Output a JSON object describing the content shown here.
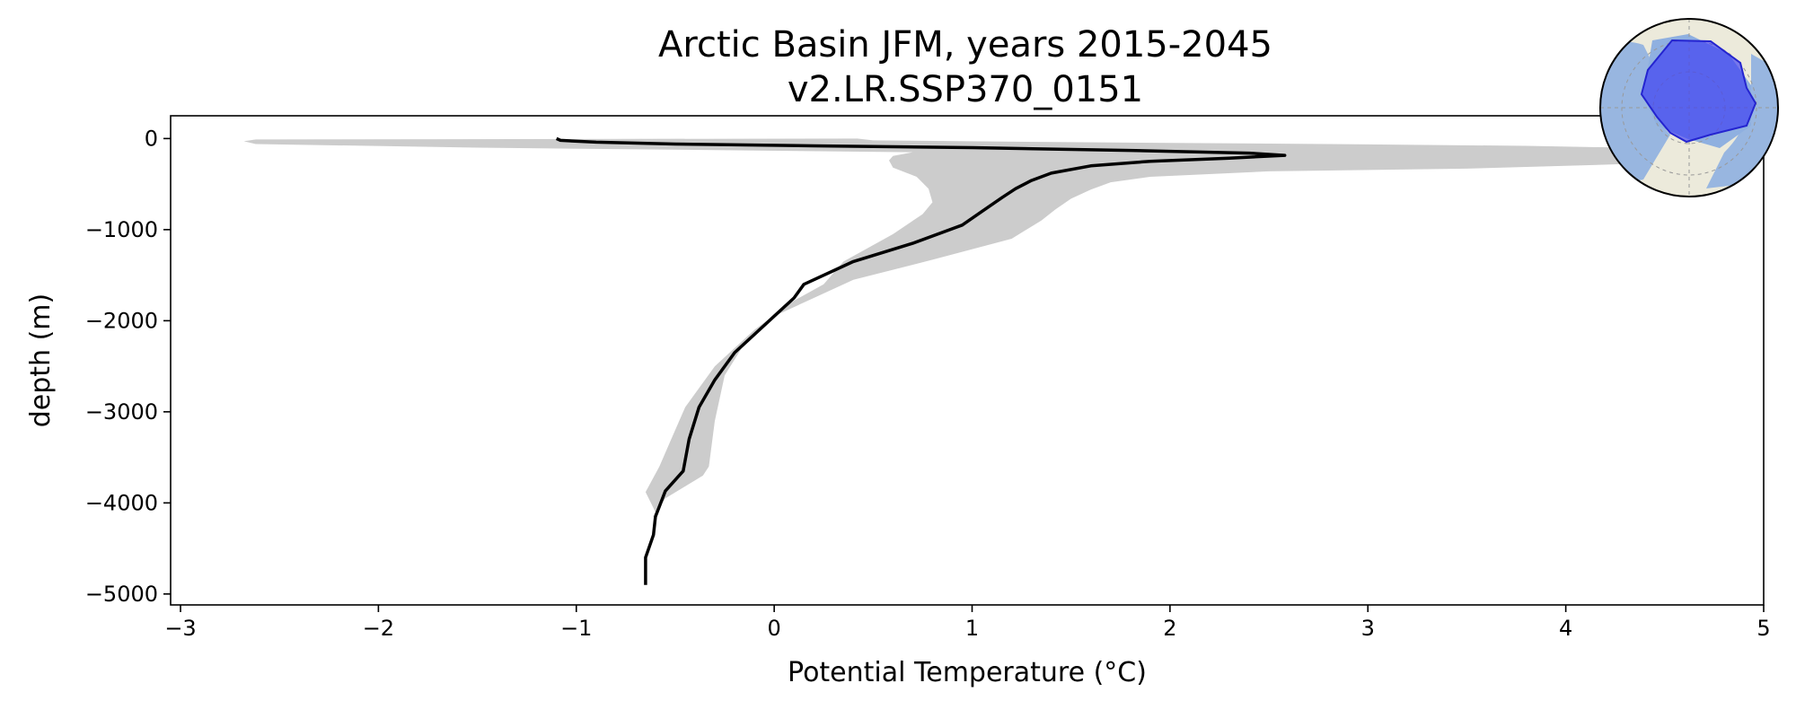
{
  "chart_data": {
    "type": "line",
    "title_line1": "Arctic Basin JFM, years 2015-2045",
    "title_line2": "v2.LR.SSP370_0151",
    "xlabel": "Potential Temperature (°C)",
    "ylabel": "depth (m)",
    "xlim": [
      -3.05,
      5.0
    ],
    "ylim": [
      -5120,
      250
    ],
    "xticks": [
      -3,
      -2,
      -1,
      0,
      1,
      2,
      3,
      4,
      5
    ],
    "xtick_labels": [
      "−3",
      "−2",
      "−1",
      "0",
      "1",
      "2",
      "3",
      "4",
      "5"
    ],
    "yticks": [
      0,
      -1000,
      -2000,
      -3000,
      -4000,
      -5000
    ],
    "ytick_labels": [
      "0",
      "−1000",
      "−2000",
      "−3000",
      "−4000",
      "−5000"
    ],
    "grid": false,
    "legend": "none",
    "colors": {
      "mean_line": "#000000",
      "range_band": "#cccccc",
      "map_ocean": "#8fb0e0",
      "map_land": "#eceadb",
      "map_region": "#3b3bf5"
    },
    "series": [
      {
        "role": "mean",
        "points": [
          [
            -1.1,
            0
          ],
          [
            -1.08,
            -20
          ],
          [
            -0.9,
            -40
          ],
          [
            -0.5,
            -60
          ],
          [
            0.2,
            -80
          ],
          [
            1.0,
            -100
          ],
          [
            1.8,
            -130
          ],
          [
            2.4,
            -160
          ],
          [
            2.58,
            -185
          ],
          [
            2.3,
            -215
          ],
          [
            1.9,
            -250
          ],
          [
            1.6,
            -300
          ],
          [
            1.4,
            -380
          ],
          [
            1.3,
            -460
          ],
          [
            1.22,
            -550
          ],
          [
            1.15,
            -650
          ],
          [
            1.05,
            -800
          ],
          [
            0.95,
            -950
          ],
          [
            0.7,
            -1150
          ],
          [
            0.4,
            -1350
          ],
          [
            0.15,
            -1600
          ],
          [
            0.1,
            -1750
          ],
          [
            0.0,
            -1950
          ],
          [
            -0.1,
            -2150
          ],
          [
            -0.2,
            -2350
          ],
          [
            -0.3,
            -2650
          ],
          [
            -0.38,
            -2950
          ],
          [
            -0.43,
            -3300
          ],
          [
            -0.46,
            -3650
          ],
          [
            -0.55,
            -3870
          ],
          [
            -0.6,
            -4150
          ],
          [
            -0.61,
            -4350
          ],
          [
            -0.65,
            -4600
          ],
          [
            -0.65,
            -4900
          ]
        ]
      }
    ],
    "range_band": {
      "max": [
        [
          0.42,
          0
        ],
        [
          0.5,
          -20
        ],
        [
          1.5,
          -40
        ],
        [
          2.8,
          -60
        ],
        [
          3.8,
          -80
        ],
        [
          4.3,
          -100
        ],
        [
          4.6,
          -140
        ],
        [
          4.7,
          -190
        ],
        [
          4.3,
          -280
        ],
        [
          3.5,
          -330
        ],
        [
          2.5,
          -360
        ],
        [
          1.9,
          -420
        ],
        [
          1.7,
          -480
        ],
        [
          1.6,
          -560
        ],
        [
          1.5,
          -660
        ],
        [
          1.42,
          -780
        ],
        [
          1.35,
          -900
        ],
        [
          1.2,
          -1100
        ],
        [
          0.8,
          -1330
        ],
        [
          0.4,
          -1550
        ],
        [
          0.2,
          -1750
        ],
        [
          0.0,
          -1950
        ],
        [
          -0.15,
          -2250
        ],
        [
          -0.25,
          -2600
        ],
        [
          -0.3,
          -3100
        ],
        [
          -0.33,
          -3600
        ],
        [
          -0.36,
          -3700
        ],
        [
          -0.55,
          -3950
        ],
        [
          -0.62,
          -4180
        ]
      ],
      "min": [
        [
          -2.62,
          -10
        ],
        [
          -2.68,
          -30
        ],
        [
          -2.62,
          -60
        ],
        [
          -1.5,
          -100
        ],
        [
          0.7,
          -150
        ],
        [
          0.6,
          -190
        ],
        [
          0.58,
          -240
        ],
        [
          0.6,
          -320
        ],
        [
          0.72,
          -420
        ],
        [
          0.78,
          -550
        ],
        [
          0.8,
          -700
        ],
        [
          0.75,
          -830
        ],
        [
          0.6,
          -1050
        ],
        [
          0.35,
          -1350
        ],
        [
          0.25,
          -1600
        ],
        [
          0.1,
          -1780
        ],
        [
          -0.1,
          -2100
        ],
        [
          -0.3,
          -2500
        ],
        [
          -0.45,
          -2950
        ],
        [
          -0.52,
          -3300
        ],
        [
          -0.58,
          -3600
        ],
        [
          -0.65,
          -3880
        ],
        [
          -0.6,
          -4100
        ]
      ]
    }
  }
}
